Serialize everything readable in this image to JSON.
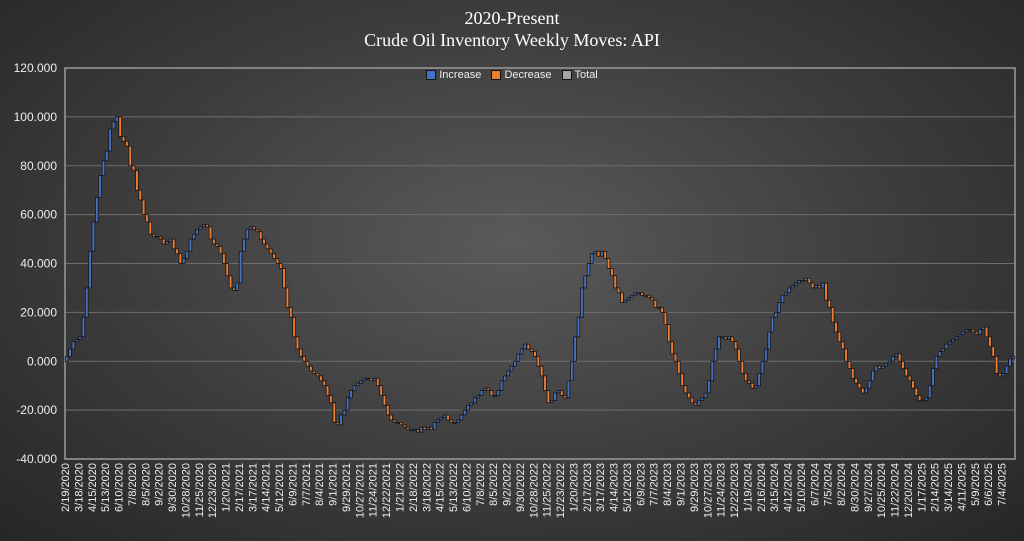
{
  "chart_data": {
    "type": "waterfall",
    "title": "2020-Present",
    "subtitle": "Crude Oil Inventory Weekly Moves:  API",
    "ylim": [
      -40,
      120
    ],
    "y_ticks": [
      "120.000",
      "100.000",
      "80.000",
      "60.000",
      "40.000",
      "20.000",
      "0.000",
      "-20.000",
      "-40.000"
    ],
    "y_tick_values": [
      120,
      100,
      80,
      60,
      40,
      20,
      0,
      -20,
      -40
    ],
    "grid": true,
    "legend_position": "top-center",
    "legend": [
      {
        "name": "Increase",
        "color": "#4472c4"
      },
      {
        "name": "Decrease",
        "color": "#ed7d31"
      },
      {
        "name": "Total",
        "color": "#a5a5a5"
      }
    ],
    "x_tick_labels": [
      "2/19/2020",
      "3/18/2020",
      "4/15/2020",
      "5/13/2020",
      "6/10/2020",
      "7/8/2020",
      "8/5/2020",
      "9/2/2020",
      "9/30/2020",
      "10/28/2020",
      "11/25/2020",
      "12/23/2020",
      "1/20/2021",
      "2/17/2021",
      "3/17/2021",
      "4/14/2021",
      "5/12/2021",
      "6/9/2021",
      "7/7/2021",
      "8/4/2021",
      "9/1/2021",
      "9/29/2021",
      "10/27/2021",
      "11/24/2021",
      "12/22/2021",
      "1/21/2022",
      "2/18/2022",
      "3/18/2022",
      "4/15/2022",
      "5/13/2022",
      "6/10/2022",
      "7/8/2022",
      "8/5/2022",
      "9/2/2022",
      "9/30/2022",
      "10/28/2022",
      "11/25/2022",
      "12/23/2022",
      "1/20/2023",
      "2/17/2023",
      "3/17/2023",
      "4/14/2023",
      "5/12/2023",
      "6/9/2023",
      "7/7/2023",
      "8/4/2023",
      "9/1/2023",
      "9/29/2023",
      "10/27/2023",
      "11/24/2023",
      "12/22/2023",
      "1/19/2024",
      "2/16/2024",
      "3/15/2024",
      "4/12/2024",
      "5/10/2024",
      "6/7/2024",
      "7/5/2024",
      "8/2/2024",
      "8/30/2024",
      "9/27/2024",
      "10/25/2024",
      "11/22/2024",
      "12/20/2024",
      "1/17/2025",
      "2/14/2025",
      "3/14/2025",
      "4/11/2025",
      "5/9/2025",
      "6/6/2025",
      "7/4/2025"
    ],
    "cumulative_levels_weekly": [
      2,
      5,
      8,
      9,
      10,
      18,
      30,
      45,
      57,
      67,
      76,
      82,
      86,
      95,
      98,
      100,
      92,
      90,
      88,
      80,
      78,
      70,
      66,
      60,
      57,
      52,
      51,
      51,
      50,
      48,
      49,
      50,
      46,
      44,
      40,
      42,
      45,
      50,
      52,
      54,
      55,
      56,
      55,
      50,
      48,
      47,
      44,
      40,
      35,
      30,
      29,
      32,
      45,
      50,
      54,
      55,
      54,
      53,
      50,
      48,
      46,
      44,
      42,
      40,
      38,
      30,
      22,
      18,
      10,
      5,
      2,
      0,
      -2,
      -4,
      -5,
      -6,
      -8,
      -10,
      -14,
      -17,
      -25,
      -26,
      -22,
      -20,
      -15,
      -12,
      -10,
      -9,
      -8,
      -7,
      -7,
      -8,
      -7,
      -10,
      -14,
      -18,
      -22,
      -24,
      -25,
      -25,
      -26,
      -27,
      -28,
      -28,
      -28,
      -29,
      -27,
      -28,
      -27,
      -28,
      -25,
      -24,
      -23,
      -22,
      -24,
      -25,
      -25,
      -24,
      -22,
      -20,
      -18,
      -17,
      -15,
      -14,
      -12,
      -11,
      -12,
      -14,
      -14,
      -12,
      -8,
      -6,
      -4,
      -2,
      0,
      3,
      5,
      7,
      5,
      4,
      2,
      -2,
      -6,
      -12,
      -17,
      -16,
      -13,
      -12,
      -14,
      -15,
      -8,
      0,
      10,
      18,
      30,
      35,
      40,
      44,
      45,
      43,
      45,
      42,
      38,
      35,
      30,
      28,
      24,
      25,
      26,
      27,
      28,
      28,
      27,
      27,
      26,
      25,
      22,
      22,
      20,
      15,
      8,
      3,
      0,
      -5,
      -10,
      -13,
      -15,
      -17,
      -18,
      -16,
      -15,
      -13,
      -8,
      0,
      5,
      10,
      10,
      9,
      10,
      8,
      5,
      0,
      -5,
      -8,
      -9,
      -11,
      -10,
      -5,
      0,
      5,
      12,
      18,
      20,
      24,
      27,
      28,
      30,
      31,
      32,
      33,
      33,
      34,
      32,
      30,
      31,
      30,
      32,
      25,
      22,
      16,
      12,
      8,
      5,
      0,
      -3,
      -7,
      -9,
      -11,
      -13,
      -11,
      -8,
      -4,
      -2,
      -3,
      -2,
      -1,
      0,
      2,
      3,
      0,
      -3,
      -6,
      -8,
      -11,
      -14,
      -16,
      -16,
      -15,
      -10,
      -3,
      2,
      4,
      5,
      7,
      8,
      9,
      10,
      11,
      12,
      13,
      13,
      12,
      11,
      13,
      14,
      10,
      6,
      2,
      -5,
      -6,
      -5,
      -2,
      1,
      2
    ]
  }
}
